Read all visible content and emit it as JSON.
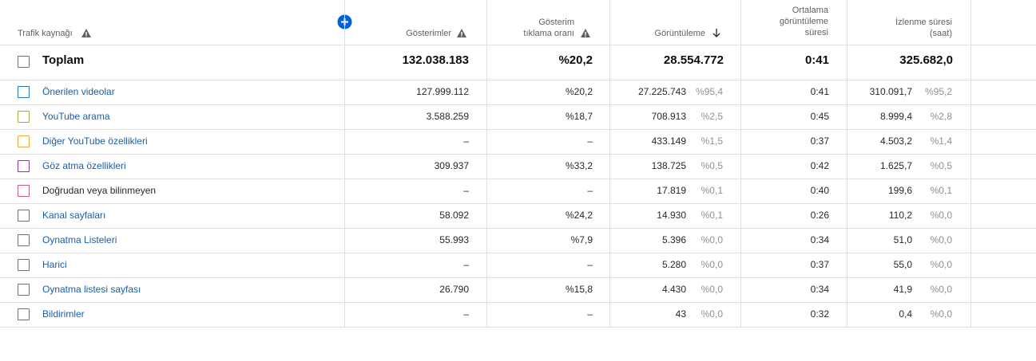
{
  "header": {
    "source": "Trafik kaynağı",
    "impressions": "Gösterimler",
    "ctr": [
      "Gösterim",
      "tıklama oranı"
    ],
    "views": "Görüntüleme",
    "avg_duration": [
      "Ortalama",
      "görüntüleme",
      "süresi"
    ],
    "watch_time": [
      "İzlenme süresi",
      "(saat)"
    ]
  },
  "total": {
    "name": "Toplam",
    "impressions": "132.038.183",
    "ctr": "%20,2",
    "views": "28.554.772",
    "avg_duration": "0:41",
    "watch_time": "325.682,0"
  },
  "rows": [
    {
      "name": "Önerilen videolar",
      "link": true,
      "color": "#1f78b4",
      "impressions": "127.999.112",
      "ctr": "%20,2",
      "views": "27.225.743",
      "views_share": "%95,4",
      "avg_duration": "0:41",
      "watch_time": "310.091,7",
      "watch_share": "%95,2"
    },
    {
      "name": "YouTube arama",
      "link": true,
      "color": "#8bb83a",
      "impressions": "3.588.259",
      "ctr": "%18,7",
      "views": "708.913",
      "views_share": "%2,5",
      "avg_duration": "0:45",
      "watch_time": "8.999,4",
      "watch_share": "%2,8"
    },
    {
      "name": "Diğer YouTube özellikleri",
      "link": true,
      "color": "#f0a63a",
      "impressions": "–",
      "ctr": "–",
      "views": "433.149",
      "views_share": "%1,5",
      "avg_duration": "0:37",
      "watch_time": "4.503,2",
      "watch_share": "%1,4"
    },
    {
      "name": "Göz atma özellikleri",
      "link": true,
      "color": "#8e3a9e",
      "impressions": "309.937",
      "ctr": "%33,2",
      "views": "138.725",
      "views_share": "%0,5",
      "avg_duration": "0:42",
      "watch_time": "1.625,7",
      "watch_share": "%0,5"
    },
    {
      "name": "Doğrudan veya bilinmeyen",
      "link": false,
      "color": "#c85a82",
      "impressions": "–",
      "ctr": "–",
      "views": "17.819",
      "views_share": "%0,1",
      "avg_duration": "0:40",
      "watch_time": "199,6",
      "watch_share": "%0,1"
    },
    {
      "name": "Kanal sayfaları",
      "link": true,
      "impressions": "58.092",
      "ctr": "%24,2",
      "views": "14.930",
      "views_share": "%0,1",
      "avg_duration": "0:26",
      "watch_time": "110,2",
      "watch_share": "%0,0"
    },
    {
      "name": "Oynatma Listeleri",
      "link": true,
      "impressions": "55.993",
      "ctr": "%7,9",
      "views": "5.396",
      "views_share": "%0,0",
      "avg_duration": "0:34",
      "watch_time": "51,0",
      "watch_share": "%0,0"
    },
    {
      "name": "Harici",
      "link": true,
      "impressions": "–",
      "ctr": "–",
      "views": "5.280",
      "views_share": "%0,0",
      "avg_duration": "0:37",
      "watch_time": "55,0",
      "watch_share": "%0,0"
    },
    {
      "name": "Oynatma listesi sayfası",
      "link": true,
      "impressions": "26.790",
      "ctr": "%15,8",
      "views": "4.430",
      "views_share": "%0,0",
      "avg_duration": "0:34",
      "watch_time": "41,9",
      "watch_share": "%0,0"
    },
    {
      "name": "Bildirimler",
      "link": true,
      "impressions": "–",
      "ctr": "–",
      "views": "43",
      "views_share": "%0,0",
      "avg_duration": "0:32",
      "watch_time": "0,4",
      "watch_share": "%0,0"
    }
  ]
}
